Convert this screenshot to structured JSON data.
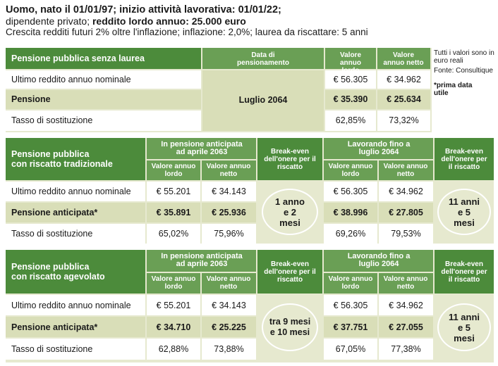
{
  "header": {
    "line1": "Uomo, nato il 01/01/97; inizio attività lavorativa: 01/01/22;",
    "line2_a": "dipendente privato; ",
    "line2_b": "reddito lordo annuo: 25.000 euro",
    "line3": "Crescita redditi futuri 2% oltre l'inflazione; inflazione: 2,0%; laurea da riscattare: 5 anni"
  },
  "notes": {
    "note1": "Tutti i valori sono in euro reali",
    "note2": "Fonte: Consultique",
    "note3": "*prima data utile"
  },
  "table1": {
    "title": "Pensione pubblica senza laurea",
    "col_date": "Data di pensionamento",
    "col_gross": "Valore annuo lordo",
    "col_net": "Valore annuo netto",
    "date_value": "Luglio 2064",
    "rows": [
      {
        "label": "Ultimo reddito annuo nominale",
        "gross": "€ 56.305",
        "net": "€ 34.962"
      },
      {
        "label": "Pensione",
        "gross": "€ 35.390",
        "net": "€ 25.634"
      },
      {
        "label": "Tasso di sostituzione",
        "gross": "62,85%",
        "net": "73,32%"
      }
    ]
  },
  "table2": {
    "title_line1": "Pensione pubblica",
    "title_line2": "con riscatto tradizionale",
    "group_a": "In pensione anticipata ad aprile 2063",
    "group_b": "Lavorando fino a luglio 2064",
    "col_gross": "Valore annuo lordo",
    "col_net": "Valore annuo netto",
    "break_even": "Break-even dell'onere per il riscatto",
    "be_a": "1 anno e 2 mesi",
    "be_b": "11 anni e 5 mesi",
    "rows": [
      {
        "label": "Ultimo reddito annuo nominale",
        "a_gross": "€ 55.201",
        "a_net": "€ 34.143",
        "b_gross": "€ 56.305",
        "b_net": "€ 34.962"
      },
      {
        "label": "Pensione anticipata*",
        "a_gross": "€ 35.891",
        "a_net": "€ 25.936",
        "b_gross": "€ 38.996",
        "b_net": "€ 27.805"
      },
      {
        "label": "Tasso di sostituzione",
        "a_gross": "65,02%",
        "a_net": "75,96%",
        "b_gross": "69,26%",
        "b_net": "79,53%"
      }
    ]
  },
  "table3": {
    "title_line1": "Pensione pubblica",
    "title_line2": "con riscatto agevolato",
    "group_a": "In pensione anticipata ad aprile 2063",
    "group_b": "Lavorando fino a luglio 2064",
    "col_gross": "Valore annuo lordo",
    "col_net": "Valore annuo netto",
    "break_even": "Break-even dell'onere per il riscatto",
    "be_a": "tra 9 mesi e 10 mesi",
    "be_b": "11 anni e 5 mesi",
    "rows": [
      {
        "label": "Ultimo reddito annuo nominale",
        "a_gross": "€ 55.201",
        "a_net": "€ 34.143",
        "b_gross": "€ 56.305",
        "b_net": "€ 34.962"
      },
      {
        "label": "Pensione anticipata*",
        "a_gross": "€ 34.710",
        "a_net": "€ 25.225",
        "b_gross": "€ 37.751",
        "b_net": "€ 27.055"
      },
      {
        "label": "Tasso di sostituzione",
        "a_gross": "62,88%",
        "a_net": "73,88%",
        "b_gross": "67,05%",
        "b_net": "77,38%"
      }
    ]
  }
}
